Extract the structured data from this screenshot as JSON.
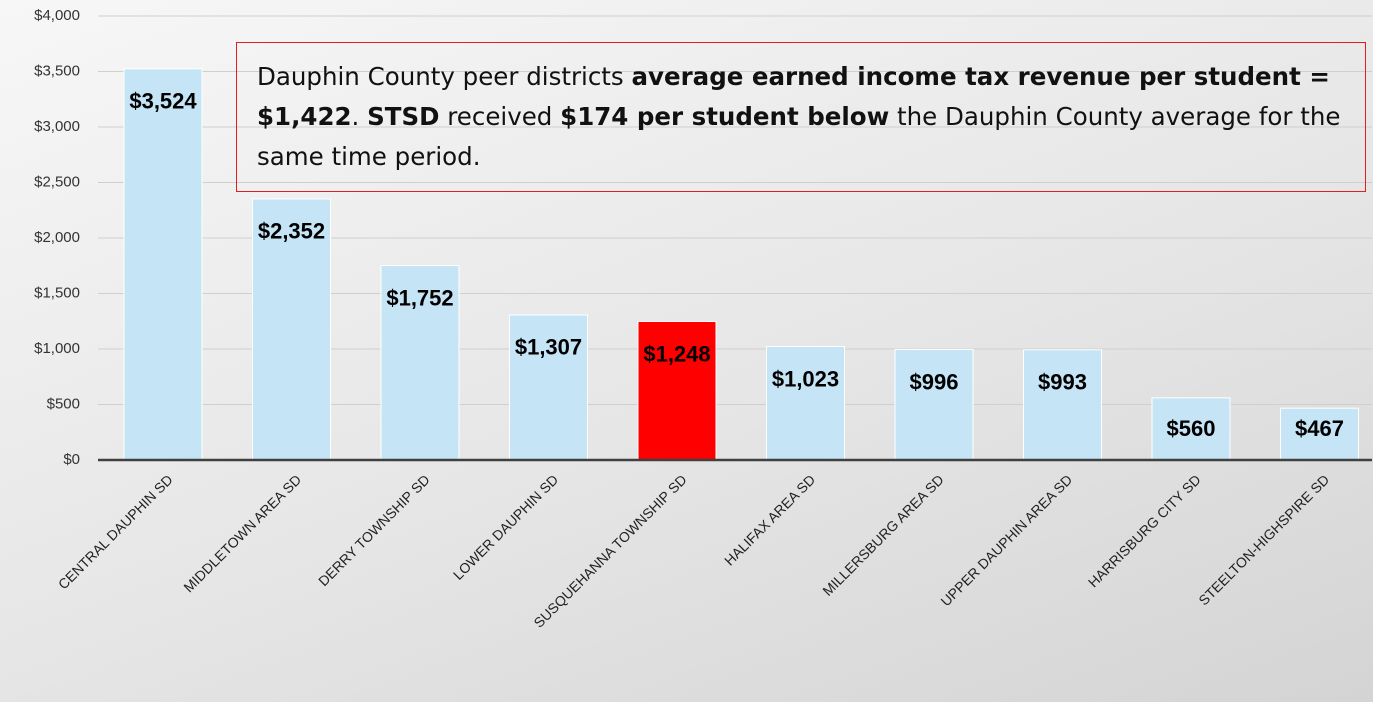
{
  "chart_data": {
    "type": "bar",
    "categories": [
      "CENTRAL DAUPHIN SD",
      "MIDDLETOWN AREA SD",
      "DERRY TOWNSHIP SD",
      "LOWER DAUPHIN SD",
      "SUSQUEHANNA TOWNSHIP SD",
      "HALIFAX AREA SD",
      "MILLERSBURG AREA SD",
      "UPPER DAUPHIN AREA SD",
      "HARRISBURG CITY SD",
      "STEELTON-HIGHSPIRE SD"
    ],
    "values": [
      3524,
      2352,
      1752,
      1307,
      1248,
      1023,
      996,
      993,
      560,
      467
    ],
    "value_labels": [
      "$3,524",
      "$2,352",
      "$1,752",
      "$1,307",
      "$1,248",
      "$1,023",
      "$996",
      "$993",
      "$560",
      "$467"
    ],
    "colors": [
      "#c5e4f5",
      "#c5e4f5",
      "#c5e4f5",
      "#c5e4f5",
      "#ff0000",
      "#c5e4f5",
      "#c5e4f5",
      "#c5e4f5",
      "#c5e4f5",
      "#c5e4f5"
    ],
    "ylim": [
      0,
      4000
    ],
    "yticks": [
      {
        "value": 0,
        "label": "$0"
      },
      {
        "value": 500,
        "label": "$500"
      },
      {
        "value": 1000,
        "label": "$1,000"
      },
      {
        "value": 1500,
        "label": "$1,500"
      },
      {
        "value": 2000,
        "label": "$2,000"
      },
      {
        "value": 2500,
        "label": "$2,500"
      },
      {
        "value": 3000,
        "label": "$3,000"
      },
      {
        "value": 3500,
        "label": "$3,500"
      },
      {
        "value": 4000,
        "label": "$4,000"
      }
    ],
    "grid": true,
    "annotation": [
      {
        "text": "Dauphin County peer districts ",
        "bold": false
      },
      {
        "text": "average earned income tax revenue per student = $1,422",
        "bold": true
      },
      {
        "text": ". ",
        "bold": false
      },
      {
        "text": "STSD",
        "bold": true
      },
      {
        "text": " received ",
        "bold": false
      },
      {
        "text": "$174 per student below",
        "bold": true
      },
      {
        "text": " the Dauphin County average for the same time period.",
        "bold": false
      }
    ]
  }
}
